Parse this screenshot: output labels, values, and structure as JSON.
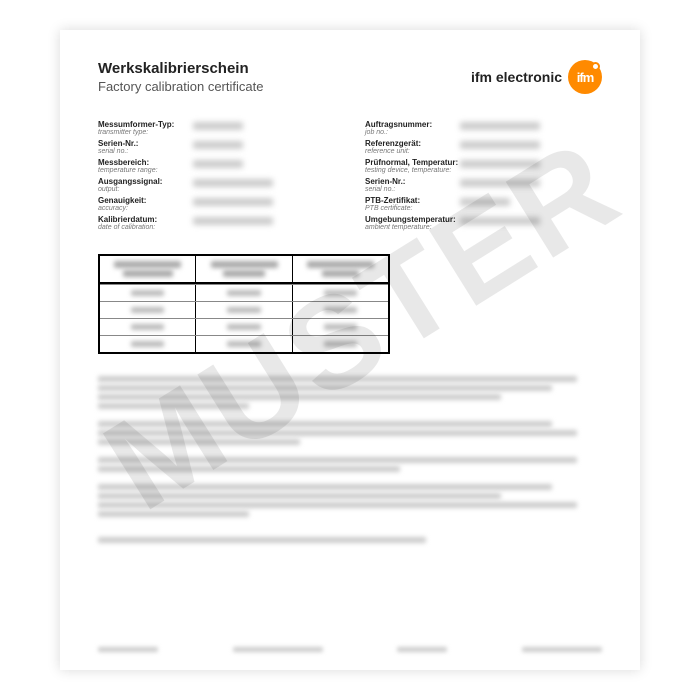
{
  "header": {
    "title_de": "Werkskalibrierschein",
    "title_en": "Factory calibration certificate",
    "brand_text": "ifm electronic",
    "logo_text": "ifm",
    "logo_bg": "#ff8a00"
  },
  "watermark": "MUSTER",
  "left_fields": [
    {
      "de": "Messumformer-Typ:",
      "en": "transmitter type:"
    },
    {
      "de": "Serien-Nr.:",
      "en": "serial no.:"
    },
    {
      "de": "Messbereich:",
      "en": "temperature range:"
    },
    {
      "de": "Ausgangssignal:",
      "en": "output:"
    },
    {
      "de": "Genauigkeit:",
      "en": "accuracy:"
    },
    {
      "de": "Kalibrierdatum:",
      "en": "date of calibration:"
    }
  ],
  "right_fields": [
    {
      "de": "Auftragsnummer:",
      "en": "job no.:"
    },
    {
      "de": "Referenzgerät:",
      "en": "reference unit:"
    },
    {
      "de": "Prüfnormal, Temperatur:",
      "en": "testing device, temperature:"
    },
    {
      "de": "Serien-Nr.:",
      "en": "serial no.:"
    },
    {
      "de": "PTB-Zertifikat:",
      "en": "PTB certificate:"
    },
    {
      "de": "Umgebungstemperatur:",
      "en": "ambient temperature:"
    }
  ],
  "table": {
    "cols": 3,
    "body_rows": 4
  }
}
